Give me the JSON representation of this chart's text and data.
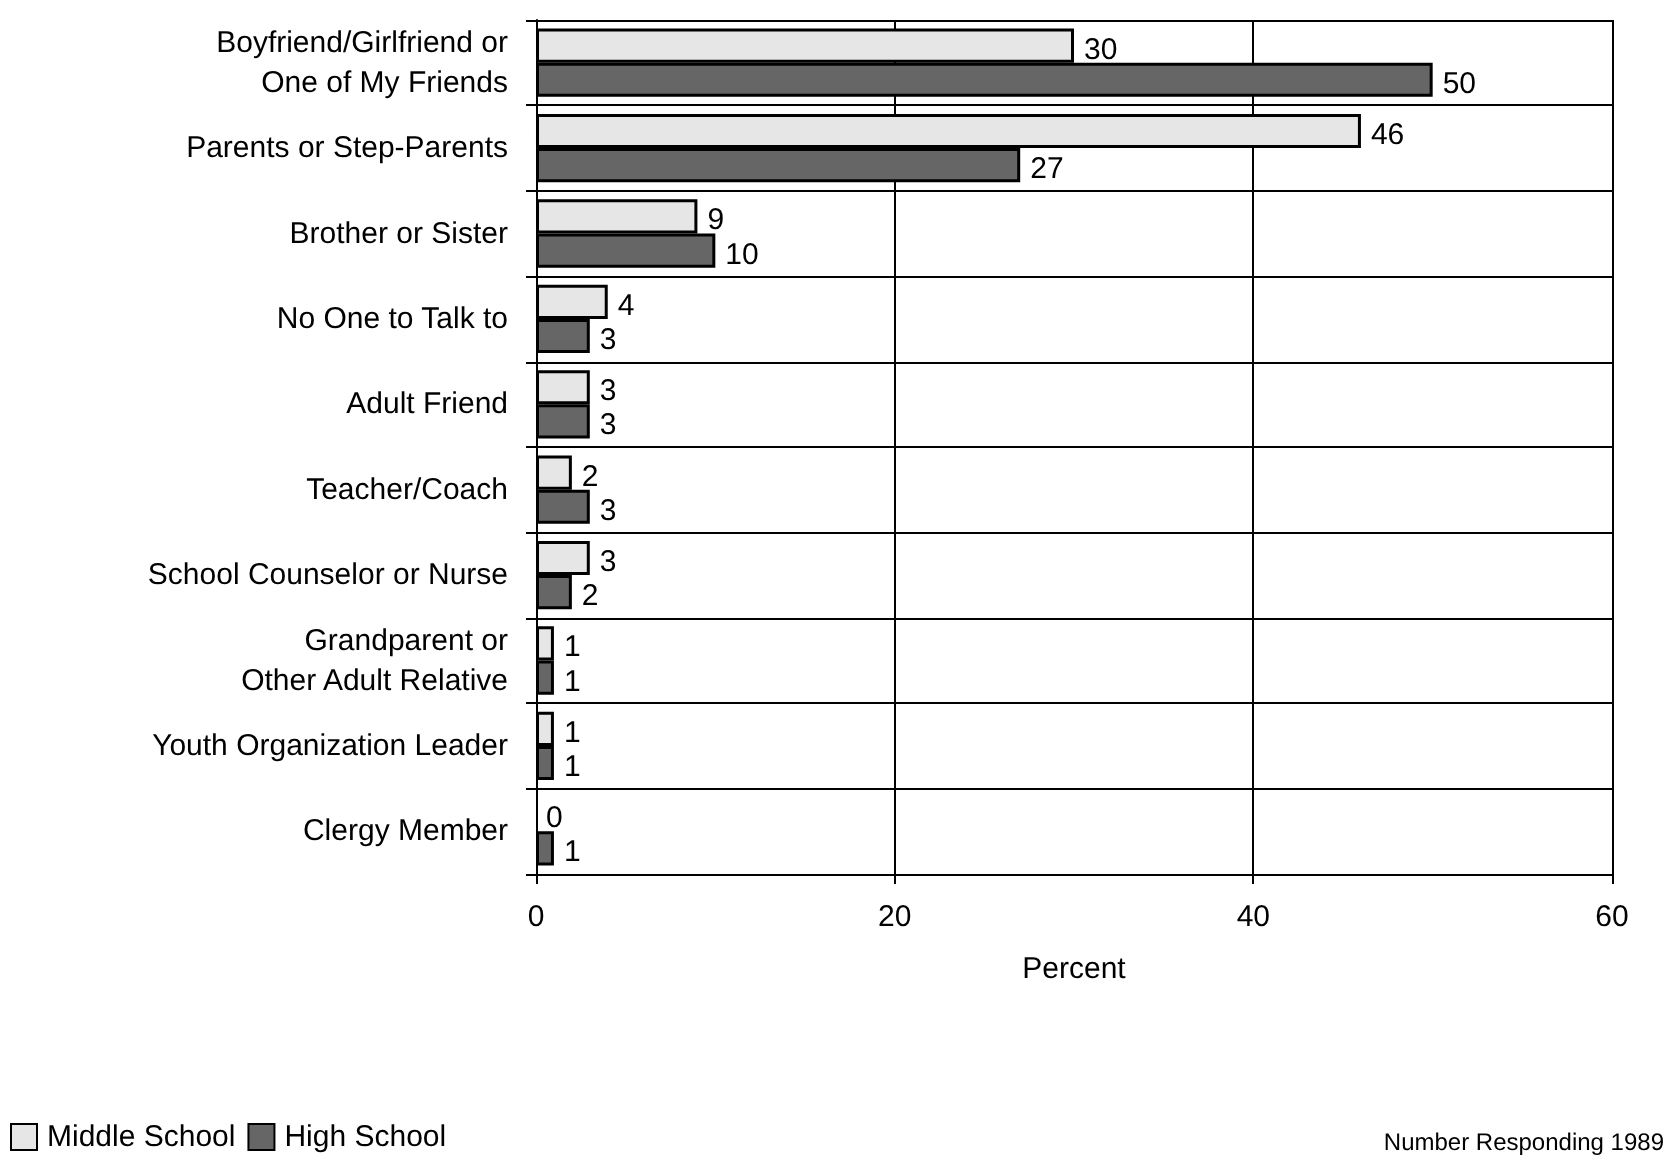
{
  "chart_data": {
    "type": "bar",
    "orientation": "horizontal",
    "xlabel": "Percent",
    "categories": [
      "Boyfriend/Girlfriend or\nOne of My Friends",
      "Parents or Step-Parents",
      "Brother or Sister",
      "No One to Talk to",
      "Adult Friend",
      "Teacher/Coach",
      "School Counselor or Nurse",
      "Grandparent or\nOther Adult Relative",
      "Youth Organization Leader",
      "Clergy Member"
    ],
    "series": [
      {
        "name": "Middle School",
        "color": "#e6e6e6",
        "values": [
          30,
          46,
          9,
          4,
          3,
          2,
          3,
          1,
          1,
          0
        ]
      },
      {
        "name": "High School",
        "color": "#666666",
        "values": [
          50,
          27,
          10,
          3,
          3,
          3,
          2,
          1,
          1,
          1
        ]
      }
    ],
    "xlim": [
      0,
      60
    ],
    "xticks": [
      0,
      20,
      40,
      60
    ],
    "grid": true,
    "data_labels": true,
    "legend": "bottom left",
    "annotations": [
      "Number Responding 1989"
    ]
  }
}
